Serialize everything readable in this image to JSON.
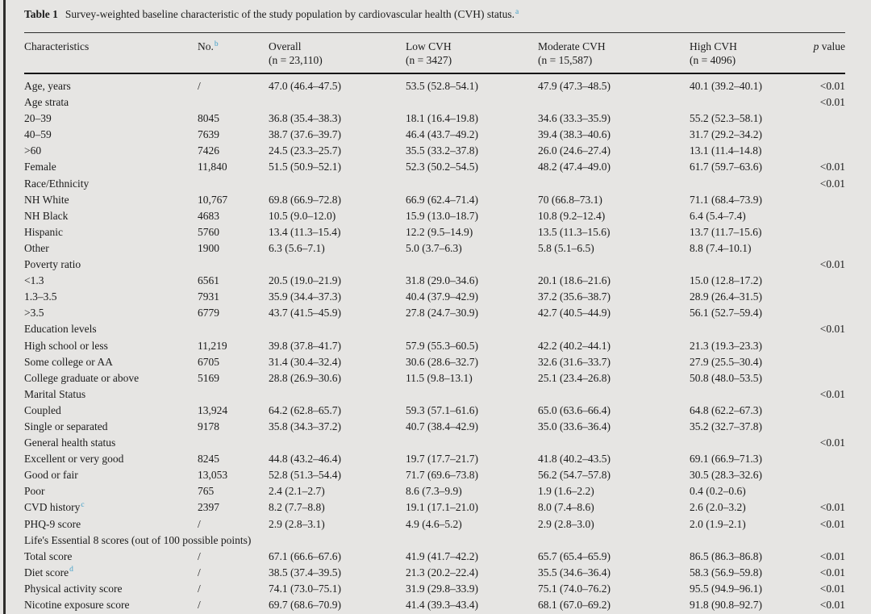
{
  "page": {
    "background": "#e6e5e3",
    "text_color": "#1b1b1b",
    "footnote_marker_color": "#3f9fc8"
  },
  "title": {
    "label": "Table 1",
    "text": "Survey-weighted baseline characteristic of the study population by cardiovascular health (CVH) status.",
    "sup": "a"
  },
  "table": {
    "headers": {
      "characteristics": "Characteristics",
      "no": {
        "text": "No.",
        "sup": "b"
      },
      "overall": {
        "line1": "Overall",
        "line2": "(n = 23,110)"
      },
      "low": {
        "line1": "Low CVH",
        "line2": "(n = 3427)"
      },
      "moderate": {
        "line1": "Moderate CVH",
        "line2": "(n = 15,587)"
      },
      "high": {
        "line1": "High CVH",
        "line2": "(n = 4096)"
      },
      "p": {
        "italic": "p",
        "rest": " value"
      }
    },
    "rows": [
      {
        "label": "Age, years",
        "no": "/",
        "overall": "47.0 (46.4–47.5)",
        "low": "53.5 (52.8–54.1)",
        "moderate": "47.9 (47.3–48.5)",
        "high": "40.1 (39.2–40.1)",
        "p": "<0.01"
      },
      {
        "label": "Age strata",
        "p": "<0.01"
      },
      {
        "label": "20–39",
        "no": "8045",
        "overall": "36.8 (35.4–38.3)",
        "low": "18.1 (16.4–19.8)",
        "moderate": "34.6 (33.3–35.9)",
        "high": "55.2 (52.3–58.1)"
      },
      {
        "label": "40–59",
        "no": "7639",
        "overall": "38.7 (37.6–39.7)",
        "low": "46.4 (43.7–49.2)",
        "moderate": "39.4 (38.3–40.6)",
        "high": "31.7 (29.2–34.2)"
      },
      {
        "label": ">60",
        "no": "7426",
        "overall": "24.5 (23.3–25.7)",
        "low": "35.5 (33.2–37.8)",
        "moderate": "26.0 (24.6–27.4)",
        "high": "13.1 (11.4–14.8)"
      },
      {
        "label": "Female",
        "no": "11,840",
        "overall": "51.5 (50.9–52.1)",
        "low": "52.3 (50.2–54.5)",
        "moderate": "48.2 (47.4–49.0)",
        "high": "61.7 (59.7–63.6)",
        "p": "<0.01"
      },
      {
        "label": "Race/Ethnicity",
        "p": "<0.01"
      },
      {
        "label": "NH White",
        "no": "10,767",
        "overall": "69.8 (66.9–72.8)",
        "low": "66.9 (62.4–71.4)",
        "moderate": "70 (66.8–73.1)",
        "high": "71.1 (68.4–73.9)"
      },
      {
        "label": "NH Black",
        "no": "4683",
        "overall": "10.5 (9.0–12.0)",
        "low": "15.9 (13.0–18.7)",
        "moderate": "10.8 (9.2–12.4)",
        "high": "6.4 (5.4–7.4)"
      },
      {
        "label": "Hispanic",
        "no": "5760",
        "overall": "13.4 (11.3–15.4)",
        "low": "12.2 (9.5–14.9)",
        "moderate": "13.5 (11.3–15.6)",
        "high": "13.7 (11.7–15.6)"
      },
      {
        "label": "Other",
        "no": "1900",
        "overall": "6.3 (5.6–7.1)",
        "low": "5.0 (3.7–6.3)",
        "moderate": "5.8 (5.1–6.5)",
        "high": "8.8 (7.4–10.1)"
      },
      {
        "label": "Poverty ratio",
        "p": "<0.01"
      },
      {
        "label": "<1.3",
        "no": "6561",
        "overall": "20.5 (19.0–21.9)",
        "low": "31.8 (29.0–34.6)",
        "moderate": "20.1 (18.6–21.6)",
        "high": "15.0 (12.8–17.2)"
      },
      {
        "label": "1.3–3.5",
        "no": "7931",
        "overall": "35.9 (34.4–37.3)",
        "low": "40.4 (37.9–42.9)",
        "moderate": "37.2 (35.6–38.7)",
        "high": "28.9 (26.4–31.5)"
      },
      {
        "label": ">3.5",
        "no": "6779",
        "overall": "43.7 (41.5–45.9)",
        "low": "27.8 (24.7–30.9)",
        "moderate": "42.7 (40.5–44.9)",
        "high": "56.1 (52.7–59.4)"
      },
      {
        "label": "Education levels",
        "p": "<0.01"
      },
      {
        "label": "High school or less",
        "no": "11,219",
        "overall": "39.8 (37.8–41.7)",
        "low": "57.9 (55.3–60.5)",
        "moderate": "42.2 (40.2–44.1)",
        "high": "21.3 (19.3–23.3)"
      },
      {
        "label": "Some college or AA",
        "no": "6705",
        "overall": "31.4 (30.4–32.4)",
        "low": "30.6 (28.6–32.7)",
        "moderate": "32.6 (31.6–33.7)",
        "high": "27.9 (25.5–30.4)"
      },
      {
        "label": "College graduate or above",
        "no": "5169",
        "overall": "28.8 (26.9–30.6)",
        "low": "11.5 (9.8–13.1)",
        "moderate": "25.1 (23.4–26.8)",
        "high": "50.8 (48.0–53.5)"
      },
      {
        "label": "Marital Status",
        "p": "<0.01"
      },
      {
        "label": "Coupled",
        "no": "13,924",
        "overall": "64.2 (62.8–65.7)",
        "low": "59.3 (57.1–61.6)",
        "moderate": "65.0 (63.6–66.4)",
        "high": "64.8 (62.2–67.3)"
      },
      {
        "label": "Single or separated",
        "no": "9178",
        "overall": "35.8 (34.3–37.2)",
        "low": "40.7 (38.4–42.9)",
        "moderate": "35.0 (33.6–36.4)",
        "high": "35.2 (32.7–37.8)"
      },
      {
        "label": "General health status",
        "p": "<0.01"
      },
      {
        "label": "Excellent or very good",
        "no": "8245",
        "overall": "44.8 (43.2–46.4)",
        "low": "19.7 (17.7–21.7)",
        "moderate": "41.8 (40.2–43.5)",
        "high": "69.1 (66.9–71.3)"
      },
      {
        "label": "Good or fair",
        "no": "13,053",
        "overall": "52.8 (51.3–54.4)",
        "low": "71.7 (69.6–73.8)",
        "moderate": "56.2 (54.7–57.8)",
        "high": "30.5 (28.3–32.6)"
      },
      {
        "label": "Poor",
        "no": "765",
        "overall": "2.4 (2.1–2.7)",
        "low": "8.6 (7.3–9.9)",
        "moderate": "1.9 (1.6–2.2)",
        "high": "0.4 (0.2–0.6)"
      },
      {
        "label": "CVD history",
        "sup": "c",
        "no": "2397",
        "overall": "8.2 (7.7–8.8)",
        "low": "19.1 (17.1–21.0)",
        "moderate": "8.0 (7.4–8.6)",
        "high": "2.6 (2.0–3.2)",
        "p": "<0.01"
      },
      {
        "label": "PHQ-9 score",
        "no": "/",
        "overall": "2.9 (2.8–3.1)",
        "low": "4.9 (4.6–5.2)",
        "moderate": "2.9 (2.8–3.0)",
        "high": "2.0 (1.9–2.1)",
        "p": "<0.01"
      },
      {
        "label": "Life's Essential 8 scores (out of 100 possible points)",
        "span": true
      },
      {
        "label": "Total score",
        "no": "/",
        "overall": "67.1 (66.6–67.6)",
        "low": "41.9 (41.7–42.2)",
        "moderate": "65.7 (65.4–65.9)",
        "high": "86.5 (86.3–86.8)",
        "p": "<0.01"
      },
      {
        "label": "Diet score",
        "sup": "d",
        "no": "/",
        "overall": "38.5 (37.4–39.5)",
        "low": "21.3 (20.2–22.4)",
        "moderate": "35.5 (34.6–36.4)",
        "high": "58.3 (56.9–59.8)",
        "p": "<0.01"
      },
      {
        "label": "Physical activity score",
        "no": "/",
        "overall": "74.1 (73.0–75.1)",
        "low": "31.9 (29.8–33.9)",
        "moderate": "75.1 (74.0–76.2)",
        "high": "95.5 (94.9–96.1)",
        "p": "<0.01"
      },
      {
        "label": "Nicotine exposure score",
        "no": "/",
        "overall": "69.7 (68.6–70.9)",
        "low": "41.4 (39.3–43.4)",
        "moderate": "68.1 (67.0–69.2)",
        "high": "91.8 (90.8–92.7)",
        "p": "<0.01"
      }
    ]
  }
}
